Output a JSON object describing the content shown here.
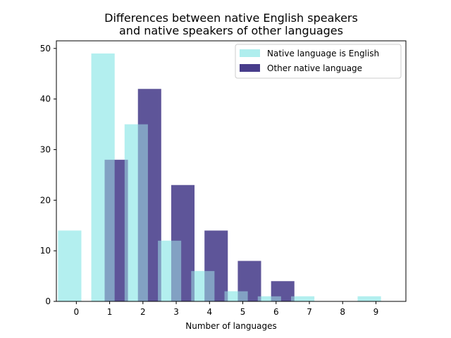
{
  "chart_data": {
    "type": "bar",
    "title_lines": [
      "Differences between native English speakers",
      "and native speakers of other languages"
    ],
    "xlabel": "Number of languages",
    "ylabel": "",
    "x_ticks": [
      0,
      1,
      2,
      3,
      4,
      5,
      6,
      7,
      8,
      9
    ],
    "y_ticks": [
      0,
      10,
      20,
      30,
      40,
      50
    ],
    "xlim": [
      -0.6,
      9.9
    ],
    "ylim": [
      0,
      51.5
    ],
    "grid": false,
    "legend_position": "top-right",
    "series": [
      {
        "name": "Native language is English",
        "color": "#afeeee",
        "offset": -0.2,
        "x": [
          0,
          1,
          2,
          3,
          4,
          5,
          6,
          7,
          9
        ],
        "values": [
          14,
          49,
          35,
          12,
          6,
          2,
          1,
          1,
          1
        ]
      },
      {
        "name": "Other native language",
        "color": "#483d8b",
        "offset": 0.2,
        "x": [
          1,
          2,
          3,
          4,
          5,
          6
        ],
        "values": [
          28,
          42,
          23,
          14,
          8,
          4
        ]
      }
    ]
  }
}
